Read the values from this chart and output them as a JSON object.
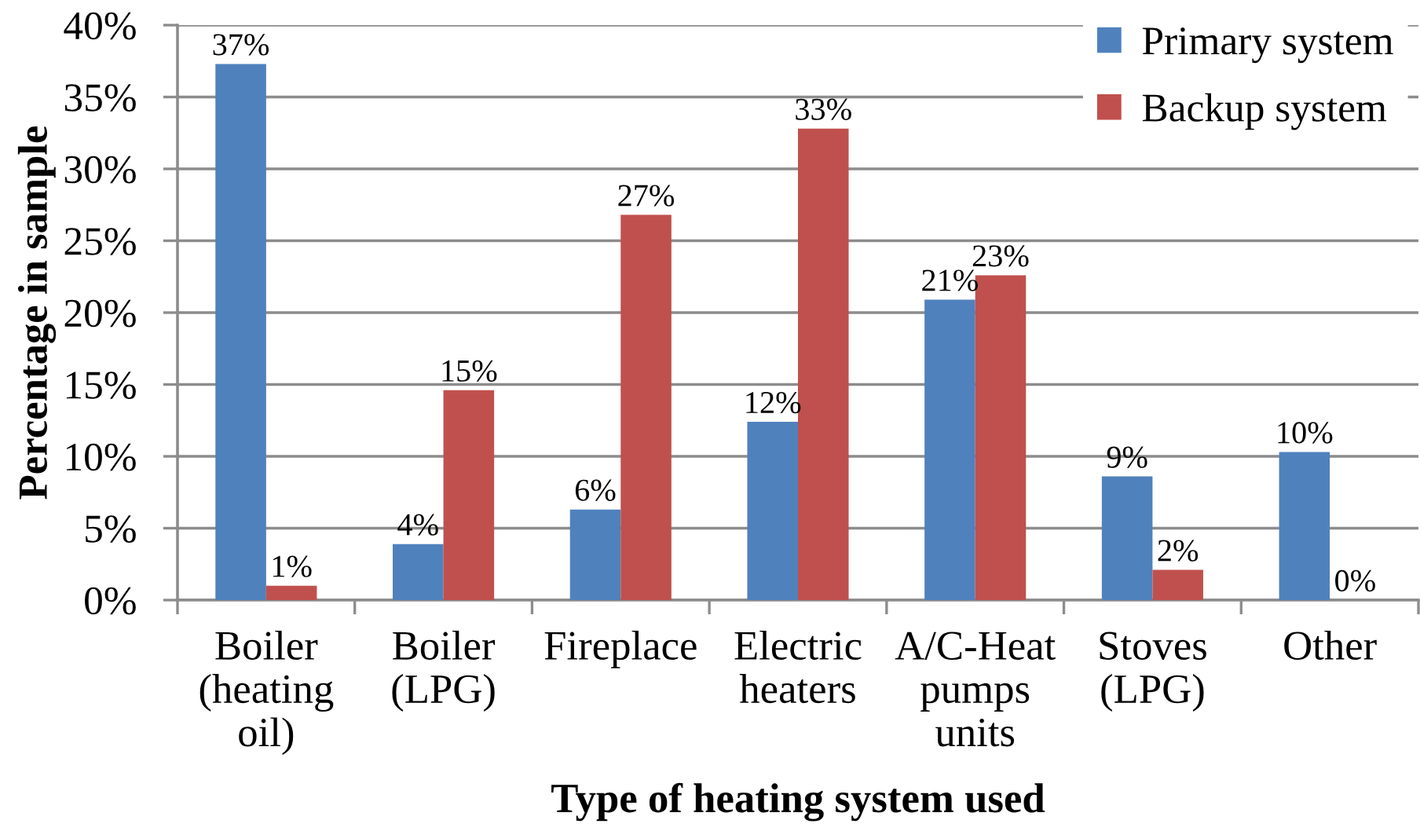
{
  "chart_data": {
    "type": "bar",
    "xlabel": "Type of heating system used",
    "ylabel": "Percentage in sample",
    "categories": [
      "Boiler (heating oil)",
      "Boiler (LPG)",
      "Fireplace",
      "Electric heaters",
      "A/C-Heat pumps units",
      "Stoves (LPG)",
      "Other"
    ],
    "series": [
      {
        "name": "Primary system",
        "color": "#4f81bd",
        "values": [
          37.3,
          3.9,
          6.3,
          12.4,
          20.9,
          8.6,
          10.3
        ],
        "value_labels": [
          "37%",
          "4%",
          "6%",
          "12%",
          "21%",
          "9%",
          "10%"
        ]
      },
      {
        "name": "Backup system",
        "color": "#c0504d",
        "values": [
          1.0,
          14.6,
          26.8,
          32.8,
          22.6,
          2.1,
          0
        ],
        "value_labels": [
          "1%",
          "15%",
          "27%",
          "33%",
          "23%",
          "2%",
          "0%"
        ]
      }
    ],
    "ylim": [
      0,
      40
    ],
    "yticks": [
      {
        "value": 0,
        "label": "0%"
      },
      {
        "value": 5,
        "label": "5%"
      },
      {
        "value": 10,
        "label": "10%"
      },
      {
        "value": 15,
        "label": "15%"
      },
      {
        "value": 20,
        "label": "20%"
      },
      {
        "value": 25,
        "label": "25%"
      },
      {
        "value": 30,
        "label": "30%"
      },
      {
        "value": 35,
        "label": "35%"
      },
      {
        "value": 40,
        "label": "40%"
      }
    ],
    "grid": "y",
    "legend": "top right"
  }
}
